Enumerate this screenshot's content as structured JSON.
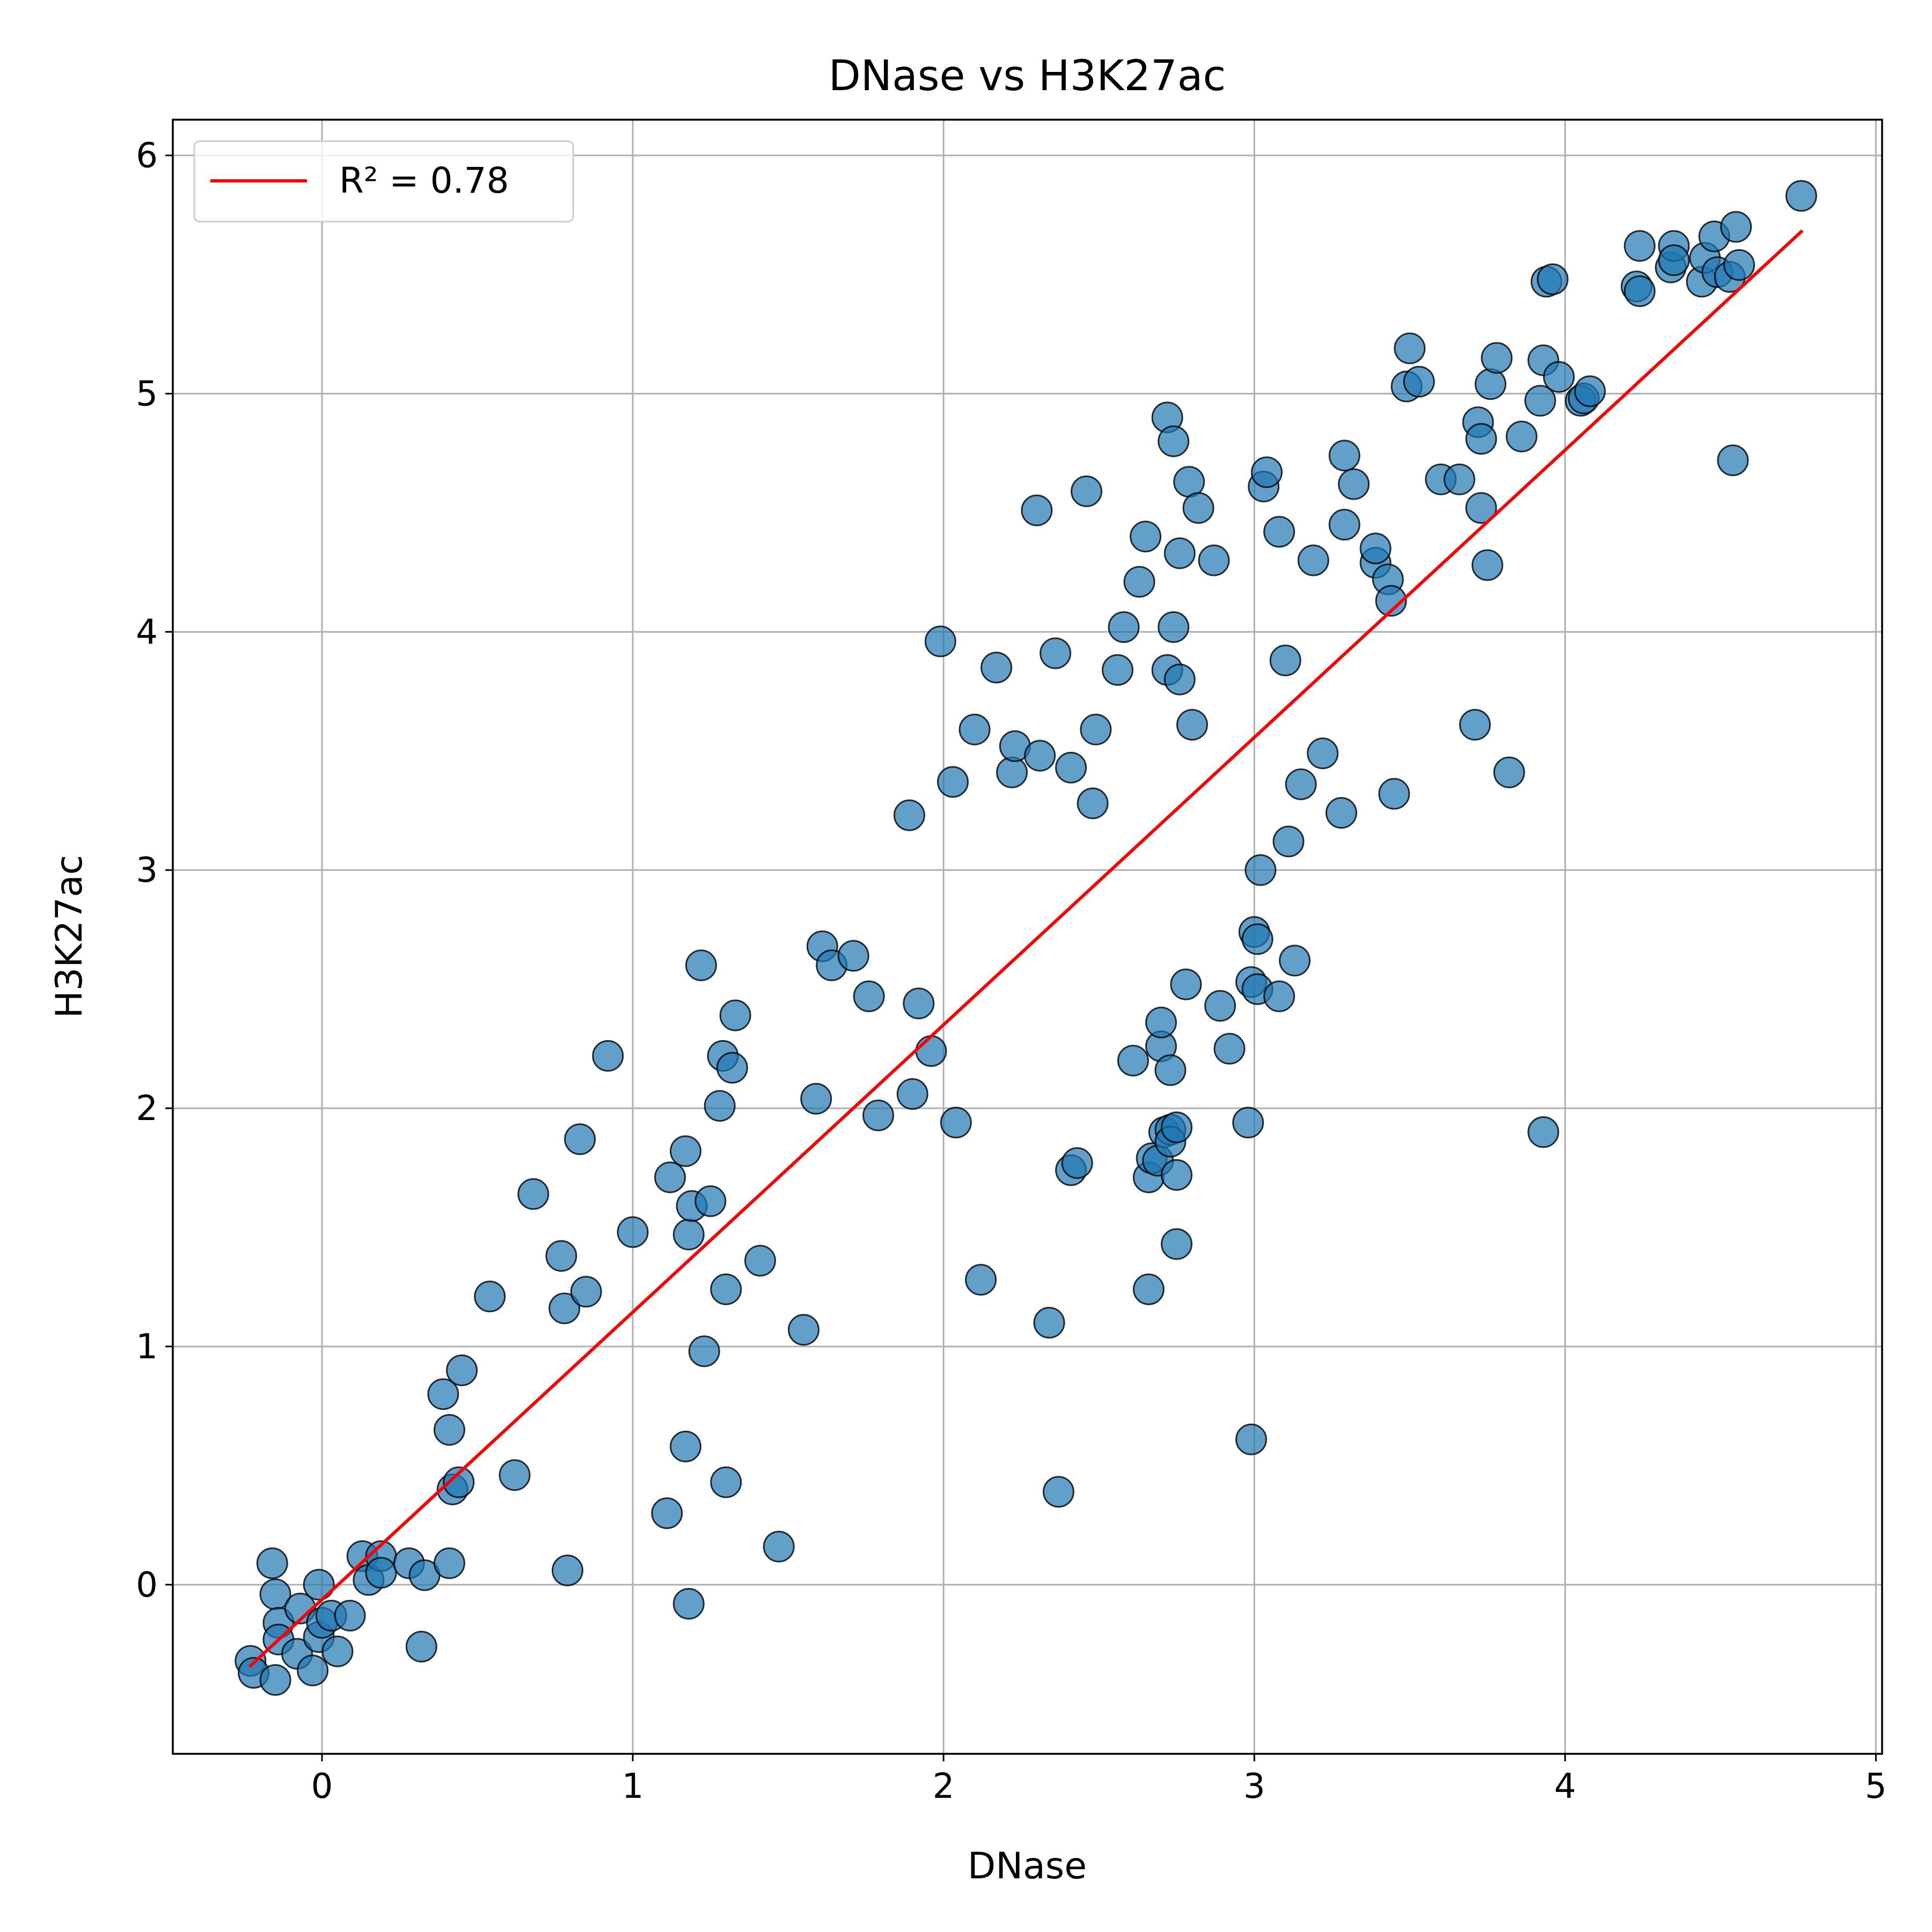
{
  "chart_data": {
    "type": "scatter",
    "title": "DNase vs H3K27ac",
    "xlabel": "DNase",
    "ylabel": "H3K27ac",
    "xlim": [
      -0.48,
      5.02
    ],
    "ylim": [
      -0.71,
      6.15
    ],
    "xticks": [
      0,
      1,
      2,
      3,
      4,
      5
    ],
    "yticks": [
      0,
      1,
      2,
      3,
      4,
      5,
      6
    ],
    "xtick_labels": [
      "0",
      "1",
      "2",
      "3",
      "4",
      "5"
    ],
    "ytick_labels": [
      "0",
      "1",
      "2",
      "3",
      "4",
      "5",
      "6"
    ],
    "grid": true,
    "legend_position": "top-left",
    "colors": {
      "points": "#1f77b4",
      "fit_line": "#ff0000"
    },
    "series": [
      {
        "kind": "scatter",
        "points": [
          [
            -0.23,
            -0.32
          ],
          [
            -0.22,
            -0.37
          ],
          [
            -0.16,
            0.09
          ],
          [
            -0.15,
            -0.04
          ],
          [
            -0.15,
            -0.4
          ],
          [
            -0.14,
            -0.16
          ],
          [
            -0.14,
            -0.23
          ],
          [
            -0.08,
            -0.29
          ],
          [
            -0.07,
            -0.1
          ],
          [
            -0.03,
            -0.36
          ],
          [
            -0.01,
            0.0
          ],
          [
            -0.01,
            -0.22
          ],
          [
            0.0,
            -0.16
          ],
          [
            0.03,
            -0.13
          ],
          [
            0.05,
            -0.28
          ],
          [
            0.09,
            -0.13
          ],
          [
            0.13,
            0.12
          ],
          [
            0.15,
            0.02
          ],
          [
            0.19,
            0.12
          ],
          [
            0.19,
            0.05
          ],
          [
            0.28,
            0.09
          ],
          [
            0.32,
            -0.26
          ],
          [
            0.33,
            0.04
          ],
          [
            0.39,
            0.8
          ],
          [
            0.41,
            0.65
          ],
          [
            0.41,
            0.09
          ],
          [
            0.42,
            0.4
          ],
          [
            0.44,
            0.43
          ],
          [
            0.45,
            0.9
          ],
          [
            0.54,
            1.21
          ],
          [
            0.62,
            0.46
          ],
          [
            0.68,
            1.64
          ],
          [
            0.77,
            1.38
          ],
          [
            0.78,
            1.16
          ],
          [
            0.79,
            0.06
          ],
          [
            0.83,
            1.87
          ],
          [
            0.85,
            1.23
          ],
          [
            0.92,
            2.22
          ],
          [
            1.0,
            1.48
          ],
          [
            1.11,
            0.3
          ],
          [
            1.12,
            1.71
          ],
          [
            1.17,
            1.82
          ],
          [
            1.17,
            0.58
          ],
          [
            1.18,
            -0.08
          ],
          [
            1.18,
            1.47
          ],
          [
            1.19,
            1.59
          ],
          [
            1.22,
            2.6
          ],
          [
            1.23,
            0.98
          ],
          [
            1.25,
            1.61
          ],
          [
            1.28,
            2.01
          ],
          [
            1.29,
            2.22
          ],
          [
            1.3,
            1.24
          ],
          [
            1.3,
            0.43
          ],
          [
            1.32,
            2.17
          ],
          [
            1.33,
            2.39
          ],
          [
            1.41,
            1.36
          ],
          [
            1.47,
            0.16
          ],
          [
            1.55,
            1.07
          ],
          [
            1.59,
            2.04
          ],
          [
            1.61,
            2.68
          ],
          [
            1.64,
            2.6
          ],
          [
            1.71,
            2.64
          ],
          [
            1.76,
            2.47
          ],
          [
            1.79,
            1.97
          ],
          [
            1.89,
            3.23
          ],
          [
            1.9,
            2.06
          ],
          [
            1.92,
            2.44
          ],
          [
            1.96,
            2.24
          ],
          [
            1.99,
            3.96
          ],
          [
            2.03,
            3.37
          ],
          [
            2.04,
            1.94
          ],
          [
            2.1,
            3.59
          ],
          [
            2.12,
            1.28
          ],
          [
            2.17,
            3.85
          ],
          [
            2.22,
            3.41
          ],
          [
            2.23,
            3.52
          ],
          [
            2.3,
            4.51
          ],
          [
            2.31,
            3.48
          ],
          [
            2.34,
            1.1
          ],
          [
            2.36,
            3.91
          ],
          [
            2.37,
            0.39
          ],
          [
            2.41,
            3.43
          ],
          [
            2.41,
            1.74
          ],
          [
            2.43,
            1.77
          ],
          [
            2.46,
            4.59
          ],
          [
            2.48,
            3.28
          ],
          [
            2.49,
            3.59
          ],
          [
            2.56,
            3.84
          ],
          [
            2.58,
            4.02
          ],
          [
            2.61,
            2.2
          ],
          [
            2.63,
            4.21
          ],
          [
            2.65,
            4.4
          ],
          [
            2.66,
            1.24
          ],
          [
            2.66,
            1.71
          ],
          [
            2.67,
            1.79
          ],
          [
            2.69,
            1.78
          ],
          [
            2.7,
            2.26
          ],
          [
            2.7,
            2.36
          ],
          [
            2.71,
            1.9
          ],
          [
            2.72,
            3.84
          ],
          [
            2.72,
            4.9
          ],
          [
            2.73,
            1.91
          ],
          [
            2.73,
            2.16
          ],
          [
            2.73,
            1.86
          ],
          [
            2.74,
            4.8
          ],
          [
            2.74,
            4.02
          ],
          [
            2.75,
            1.72
          ],
          [
            2.75,
            1.92
          ],
          [
            2.75,
            1.43
          ],
          [
            2.76,
            3.8
          ],
          [
            2.76,
            4.33
          ],
          [
            2.78,
            2.52
          ],
          [
            2.79,
            4.63
          ],
          [
            2.8,
            3.61
          ],
          [
            2.82,
            4.52
          ],
          [
            2.87,
            4.3
          ],
          [
            2.89,
            2.43
          ],
          [
            2.92,
            2.25
          ],
          [
            2.98,
            1.94
          ],
          [
            2.99,
            0.61
          ],
          [
            2.99,
            2.53
          ],
          [
            3.0,
            2.74
          ],
          [
            3.01,
            2.71
          ],
          [
            3.01,
            2.5
          ],
          [
            3.02,
            3.0
          ],
          [
            3.03,
            4.61
          ],
          [
            3.04,
            4.67
          ],
          [
            3.08,
            4.42
          ],
          [
            3.08,
            2.47
          ],
          [
            3.1,
            3.88
          ],
          [
            3.11,
            3.12
          ],
          [
            3.13,
            2.62
          ],
          [
            3.15,
            3.36
          ],
          [
            3.19,
            4.3
          ],
          [
            3.22,
            3.49
          ],
          [
            3.28,
            3.24
          ],
          [
            3.29,
            4.45
          ],
          [
            3.29,
            4.74
          ],
          [
            3.32,
            4.62
          ],
          [
            3.39,
            4.29
          ],
          [
            3.39,
            4.35
          ],
          [
            3.43,
            4.22
          ],
          [
            3.44,
            4.13
          ],
          [
            3.45,
            3.32
          ],
          [
            3.49,
            5.03
          ],
          [
            3.5,
            5.19
          ],
          [
            3.53,
            5.05
          ],
          [
            3.6,
            4.64
          ],
          [
            3.66,
            4.64
          ],
          [
            3.71,
            3.61
          ],
          [
            3.72,
            4.88
          ],
          [
            3.73,
            4.81
          ],
          [
            3.73,
            4.52
          ],
          [
            3.75,
            4.28
          ],
          [
            3.76,
            5.04
          ],
          [
            3.78,
            5.15
          ],
          [
            3.82,
            3.41
          ],
          [
            3.86,
            4.82
          ],
          [
            3.92,
            4.97
          ],
          [
            3.93,
            1.9
          ],
          [
            3.93,
            5.14
          ],
          [
            3.94,
            5.47
          ],
          [
            3.96,
            5.48
          ],
          [
            3.98,
            5.07
          ],
          [
            4.05,
            4.97
          ],
          [
            4.06,
            4.98
          ],
          [
            4.08,
            5.01
          ],
          [
            4.23,
            5.45
          ],
          [
            4.24,
            5.62
          ],
          [
            4.24,
            5.43
          ],
          [
            4.34,
            5.53
          ],
          [
            4.35,
            5.62
          ],
          [
            4.35,
            5.56
          ],
          [
            4.44,
            5.47
          ],
          [
            4.45,
            5.57
          ],
          [
            4.48,
            5.66
          ],
          [
            4.49,
            5.51
          ],
          [
            4.53,
            5.49
          ],
          [
            4.54,
            4.72
          ],
          [
            4.55,
            5.7
          ],
          [
            4.56,
            5.54
          ],
          [
            4.76,
            5.83
          ]
        ]
      },
      {
        "kind": "line",
        "name": "R² = 0.78",
        "x": [
          -0.23,
          4.76
        ],
        "y": [
          -0.34,
          5.68
        ]
      }
    ]
  }
}
